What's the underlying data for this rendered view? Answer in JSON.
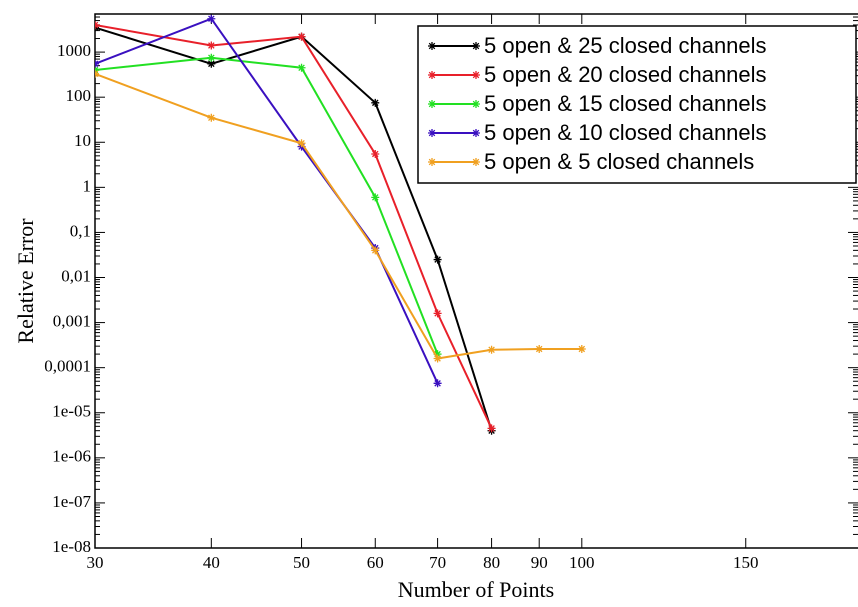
{
  "chart_data": {
    "type": "line",
    "xlabel": "Number of Points",
    "ylabel": "Relative Error",
    "x": [
      30,
      40,
      50,
      60,
      70,
      80,
      90,
      100
    ],
    "xscale": "log",
    "yscale": "log",
    "xlim": [
      30,
      198
    ],
    "ylim": [
      1e-08,
      7000
    ],
    "xticks": [
      30,
      40,
      50,
      60,
      70,
      80,
      90,
      100,
      150
    ],
    "yticks": [
      {
        "value": 1e-08,
        "label": "1e-08"
      },
      {
        "value": 1e-07,
        "label": "1e-07"
      },
      {
        "value": 1e-06,
        "label": "1e-06"
      },
      {
        "value": 1e-05,
        "label": "1e-05"
      },
      {
        "value": 0.0001,
        "label": "0,0001"
      },
      {
        "value": 0.001,
        "label": "0,001"
      },
      {
        "value": 0.01,
        "label": "0,01"
      },
      {
        "value": 0.1,
        "label": "0,1"
      },
      1,
      10,
      100,
      1000
    ],
    "legend": "upper right",
    "series": [
      {
        "name": "5 open & 25 closed channels",
        "color": "#000000",
        "values": [
          3500,
          550,
          2200,
          75,
          0.025,
          4e-06,
          null,
          null
        ]
      },
      {
        "name": "5 open & 20 closed channels",
        "color": "#e8202a",
        "values": [
          4000,
          1400,
          2200,
          5.5,
          0.0016,
          4.5e-06,
          null,
          null
        ]
      },
      {
        "name": "5 open & 15 closed channels",
        "color": "#22e022",
        "values": [
          400,
          750,
          450,
          0.6,
          0.0002,
          null,
          null,
          null
        ]
      },
      {
        "name": "5 open & 10 closed channels",
        "color": "#3a10c0",
        "values": [
          550,
          5500,
          8,
          0.045,
          4.5e-05,
          null,
          null,
          null
        ]
      },
      {
        "name": "5 open & 5 closed channels",
        "color": "#f0a020",
        "values": [
          330,
          35,
          9.5,
          0.04,
          0.00016,
          0.00025,
          0.00026,
          0.00026
        ]
      }
    ]
  }
}
